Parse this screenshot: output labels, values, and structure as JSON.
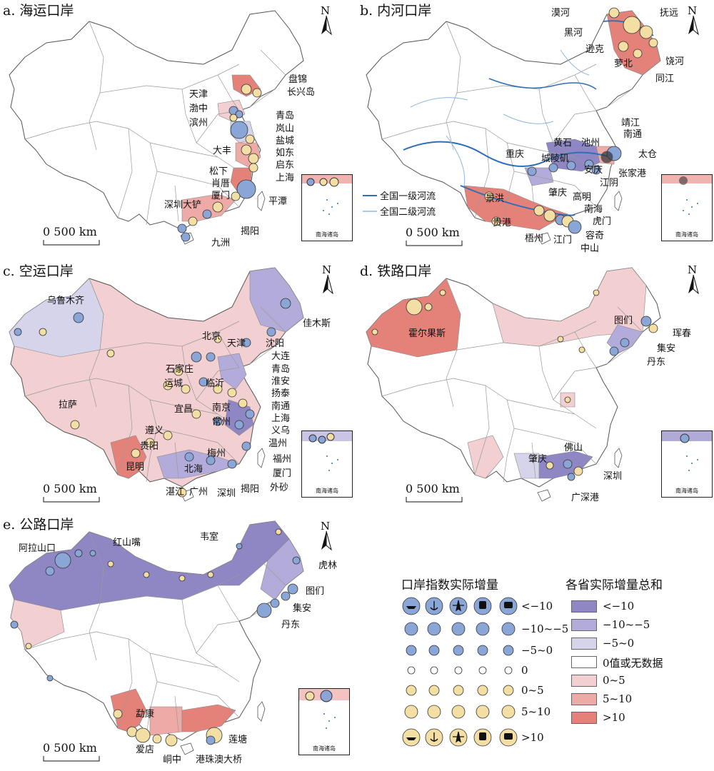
{
  "colors": {
    "lt_neg10": "#8f86c4",
    "neg10_neg5": "#b3acda",
    "neg5_0": "#d6d4ea",
    "zero": "#ffffff",
    "pos0_5": "#f2cfd1",
    "pos5_10": "#eeaaa6",
    "gt_10": "#e4827a",
    "river": "#2f6fb6",
    "marker_neg": "#8aa6d6",
    "marker_pos": "#f3dfa3"
  },
  "panels": {
    "a": {
      "title": "a. 海运口岸",
      "ports": [
        "盘锦",
        "长兴岛",
        "天津",
        "渤中",
        "滨州",
        "青岛",
        "岚山",
        "盐城",
        "如东",
        "启东",
        "大丰",
        "上海",
        "松下",
        "肖厝",
        "厦门",
        "平潭",
        "深圳大铲",
        "揭阳",
        "九洲"
      ]
    },
    "b": {
      "title": "b. 内河口岸",
      "ports": [
        "漠河",
        "黑河",
        "抚远",
        "逊克",
        "萝北",
        "饶河",
        "同江",
        "靖江",
        "黄石",
        "池州",
        "南通",
        "重庆",
        "城陵矶",
        "太仓",
        "张家港",
        "安庆",
        "江阴",
        "景洪",
        "肇庆",
        "高明",
        "南海",
        "贵港",
        "梧州",
        "虎门",
        "江门",
        "容奇",
        "中山"
      ],
      "river_legend": [
        "全国一级河流",
        "全国二级河流"
      ]
    },
    "c": {
      "title": "c. 空运口岸",
      "ports": [
        "乌鲁木齐",
        "佳木斯",
        "北京",
        "沈阳",
        "天津",
        "大连",
        "石家庄",
        "青岛",
        "淮安",
        "运城",
        "临沂",
        "扬泰",
        "拉萨",
        "南通",
        "宜昌",
        "南京",
        "上海",
        "常州",
        "义乌",
        "遵义",
        "温州",
        "贵阳",
        "梅州",
        "福州",
        "昆明",
        "北海",
        "厦门",
        "湛江",
        "广州",
        "深圳",
        "揭阳",
        "外砂"
      ]
    },
    "d": {
      "title": "d. 铁路口岸",
      "ports": [
        "霍尔果斯",
        "图们",
        "珲春",
        "集安",
        "丹东",
        "佛山",
        "肇庆",
        "深圳",
        "广深港"
      ]
    },
    "e": {
      "title": "e. 公路口岸",
      "ports": [
        "阿拉山口",
        "红山嘴",
        "韦室",
        "虎林",
        "图们",
        "集安",
        "丹东",
        "勐康",
        "莲塘",
        "爱店",
        "峒中",
        "港珠澳大桥"
      ]
    }
  },
  "scale_label": "0 500 km",
  "inset_label": "南海诸岛",
  "north_label": "N",
  "legend": {
    "port_index_title": "口岸指数实际增量",
    "province_title": "各省实际增量总和",
    "symbol_icons": [
      "ship-icon",
      "anchor-icon",
      "plane-icon",
      "train-icon",
      "bus-icon"
    ],
    "port_classes": [
      "<−10",
      "−10~−5",
      "−5~0",
      "0",
      "0~5",
      "5~10",
      ">10"
    ],
    "province_classes": [
      "<−10",
      "−10~−5",
      "−5~0",
      "0值或无数据",
      "0~5",
      "5~10",
      ">10"
    ]
  }
}
